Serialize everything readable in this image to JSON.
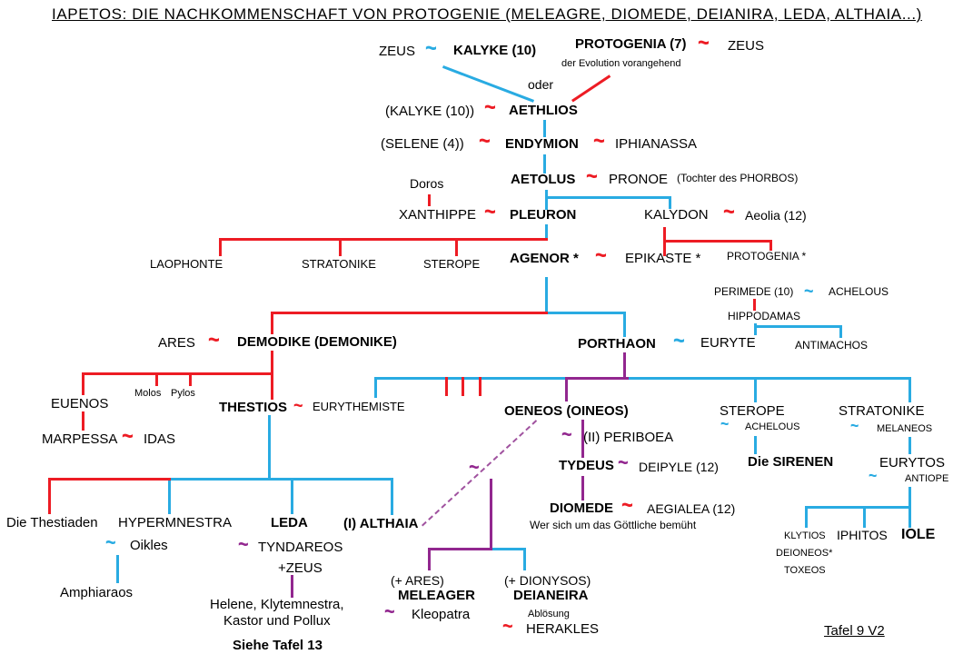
{
  "title": "IAPETOS: DIE NACHKOMMENSCHAFT VON PROTOGENIE (MELEAGRE, DIOMEDE, DEIANIRA, LEDA, ALTHAIA...)",
  "colors": {
    "b": "#29ABE2",
    "r": "#ED1C24",
    "p": "#92278F",
    "dp": "#A0529F"
  },
  "tilde_char": "~",
  "nodes": [
    [
      417,
      48,
      "ZEUS",
      "n"
    ],
    [
      499,
      47,
      "KALYKE (10)",
      "b"
    ],
    [
      633,
      40,
      "PROTOGENIA (7)",
      "b"
    ],
    [
      801,
      42,
      "ZEUS",
      "n"
    ],
    [
      618,
      64,
      "der Evolution vorangehend",
      "s11"
    ],
    [
      581,
      85,
      "oder",
      "n14"
    ],
    [
      424,
      114,
      "(KALYKE (10))",
      "n"
    ],
    [
      560,
      113,
      "AETHLIOS",
      "b"
    ],
    [
      419,
      150,
      "(SELENE (4))",
      "n"
    ],
    [
      556,
      150,
      "ENDYMION",
      "b"
    ],
    [
      677,
      150,
      "IPHIANASSA",
      "n"
    ],
    [
      562,
      189,
      "AETOLUS",
      "b"
    ],
    [
      670,
      189,
      "PRONOE",
      "n"
    ],
    [
      745,
      190,
      "(Tochter des PHORBOS)",
      "s12"
    ],
    [
      451,
      194,
      "Doros",
      "n14"
    ],
    [
      439,
      228,
      "XANTHIPPE",
      "n"
    ],
    [
      561,
      228,
      "PLEURON",
      "b"
    ],
    [
      709,
      228,
      "KALYDON",
      "n"
    ],
    [
      820,
      229,
      "Aeolia (12)",
      "n14"
    ],
    [
      165,
      284,
      "LAOPHONTE",
      "s13"
    ],
    [
      332,
      284,
      "STRATONIKE",
      "s13"
    ],
    [
      466,
      284,
      "STEROPE",
      "s13"
    ],
    [
      561,
      276,
      "AGENOR *",
      "b"
    ],
    [
      688,
      276,
      "EPIKASTE *",
      "n"
    ],
    [
      800,
      276,
      "PROTOGENIA *",
      "s12"
    ],
    [
      786,
      315,
      "PERIMEDE (10)",
      "s12"
    ],
    [
      912,
      315,
      "ACHELOUS",
      "s12"
    ],
    [
      801,
      342,
      "HIPPODAMAS",
      "s12"
    ],
    [
      875,
      374,
      "ANTIMACHOS",
      "s12"
    ],
    [
      636,
      370,
      "PORTHAON",
      "b"
    ],
    [
      771,
      369,
      "EURYTE",
      "n"
    ],
    [
      174,
      369,
      "ARES",
      "n"
    ],
    [
      261,
      368,
      "DEMODIKE (DEMONIKE)",
      "b"
    ],
    [
      56,
      436,
      "EUENOS",
      "n"
    ],
    [
      148,
      427,
      "Molos",
      "s11"
    ],
    [
      188,
      427,
      "Pylos",
      "s11"
    ],
    [
      241,
      440,
      "THESTIOS",
      "b"
    ],
    [
      344,
      441,
      "EURYTHEMISTE",
      "s13"
    ],
    [
      46,
      475,
      "MARPESSA",
      "n"
    ],
    [
      158,
      475,
      "IDAS",
      "n"
    ],
    [
      555,
      444,
      "OENEOS (OINEOS)",
      "b"
    ],
    [
      642,
      473,
      "(II) PERIBOEA",
      "n"
    ],
    [
      615,
      504,
      "TYDEUS",
      "b"
    ],
    [
      703,
      506,
      "DEIPYLE (12)",
      "n14"
    ],
    [
      605,
      551,
      "DIOMEDE",
      "b"
    ],
    [
      712,
      552,
      "AEGIALEA (12)",
      "n14"
    ],
    [
      583,
      572,
      "Wer sich um das Göttliche bemüht",
      "s12"
    ],
    [
      792,
      444,
      "STEROPE",
      "n"
    ],
    [
      820,
      464,
      "ACHELOUS",
      "s11"
    ],
    [
      823,
      500,
      "Die SIRENEN",
      "b"
    ],
    [
      923,
      444,
      "STRATONIKE",
      "n"
    ],
    [
      965,
      466,
      "MELANEOS",
      "s11"
    ],
    [
      968,
      501,
      "EURYTOS",
      "n"
    ],
    [
      996,
      521,
      "ANTIOPE",
      "s11"
    ],
    [
      863,
      584,
      "KLYTIOS",
      "s11"
    ],
    [
      921,
      581,
      "IPHITOS",
      "n14"
    ],
    [
      992,
      580,
      "IOLE",
      "b16"
    ],
    [
      854,
      603,
      "DEIONEOS*",
      "s11"
    ],
    [
      863,
      622,
      "TOXEOS",
      "s11"
    ],
    [
      7,
      567,
      "Die Thestiaden",
      "n"
    ],
    [
      130,
      567,
      "HYPERMNESTRA",
      "n"
    ],
    [
      298,
      567,
      "LEDA",
      "b"
    ],
    [
      378,
      568,
      "(I) ALTHAIA",
      "b"
    ],
    [
      143,
      592,
      "Oikles",
      "n"
    ],
    [
      66,
      644,
      "Amphiaraos",
      "n"
    ],
    [
      284,
      594,
      "TYNDAREOS",
      "n"
    ],
    [
      306,
      617,
      "+ZEUS",
      "n"
    ],
    [
      231,
      657,
      "Helene, Klytemnestra,",
      "n"
    ],
    [
      246,
      675,
      "Kastor und Pollux",
      "n"
    ],
    [
      256,
      702,
      "Siehe Tafel 13",
      "b"
    ],
    [
      430,
      631,
      "(+ ARES)",
      "n14"
    ],
    [
      438,
      647,
      "MELEAGER",
      "b"
    ],
    [
      453,
      668,
      "Kleopatra",
      "n"
    ],
    [
      555,
      631,
      "(+ DIONYSOS)",
      "n14"
    ],
    [
      565,
      647,
      "DEIANEIRA",
      "b"
    ],
    [
      581,
      670,
      "Ablösung",
      "s11"
    ],
    [
      579,
      684,
      "HERAKLES",
      "n"
    ],
    [
      907,
      686,
      "Tafel 9 V2",
      "u15"
    ]
  ],
  "tildes": [
    [
      468,
      42,
      22,
      "b"
    ],
    [
      768,
      36,
      22,
      "r"
    ],
    [
      533,
      107,
      22,
      "r"
    ],
    [
      527,
      144,
      22,
      "r"
    ],
    [
      653,
      144,
      22,
      "r"
    ],
    [
      645,
      183,
      22,
      "r"
    ],
    [
      533,
      222,
      22,
      "r"
    ],
    [
      796,
      222,
      22,
      "r"
    ],
    [
      655,
      270,
      22,
      "r"
    ],
    [
      885,
      311,
      18,
      "b"
    ],
    [
      741,
      364,
      22,
      "b"
    ],
    [
      229,
      363,
      22,
      "r"
    ],
    [
      323,
      437,
      18,
      "r"
    ],
    [
      134,
      469,
      22,
      "r"
    ],
    [
      618,
      469,
      20,
      "p"
    ],
    [
      680,
      500,
      20,
      "p"
    ],
    [
      684,
      545,
      22,
      "r"
    ],
    [
      793,
      460,
      16,
      "b"
    ],
    [
      936,
      462,
      16,
      "b"
    ],
    [
      956,
      517,
      16,
      "b"
    ],
    [
      116,
      588,
      20,
      "b"
    ],
    [
      262,
      590,
      20,
      "p"
    ],
    [
      516,
      505,
      20,
      "p"
    ],
    [
      423,
      664,
      20,
      "p"
    ],
    [
      553,
      680,
      20,
      "r"
    ]
  ],
  "lines": [
    [
      598,
      132,
      3,
      19,
      "b"
    ],
    [
      598,
      170,
      3,
      21,
      "b"
    ],
    [
      600,
      209,
      3,
      22,
      "b"
    ],
    [
      600,
      216,
      139,
      3,
      "b"
    ],
    [
      736,
      216,
      3,
      14,
      "b"
    ],
    [
      600,
      247,
      3,
      18,
      "b"
    ],
    [
      600,
      305,
      3,
      41,
      "b"
    ],
    [
      600,
      343,
      89,
      3,
      "b"
    ],
    [
      686,
      343,
      3,
      28,
      "b"
    ],
    [
      830,
      356,
      3,
      13,
      "b"
    ],
    [
      830,
      358,
      97,
      3,
      "b"
    ],
    [
      924,
      358,
      3,
      14,
      "b"
    ],
    [
      412,
      415,
      591,
      3,
      "b"
    ],
    [
      412,
      415,
      3,
      23,
      "b"
    ],
    [
      830,
      415,
      3,
      28,
      "b"
    ],
    [
      1000,
      415,
      3,
      28,
      "b"
    ],
    [
      830,
      480,
      3,
      20,
      "b"
    ],
    [
      1000,
      481,
      3,
      19,
      "b"
    ],
    [
      1000,
      536,
      3,
      24,
      "b"
    ],
    [
      886,
      557,
      117,
      3,
      "b"
    ],
    [
      886,
      557,
      3,
      24,
      "b"
    ],
    [
      950,
      557,
      3,
      24,
      "b"
    ],
    [
      1000,
      557,
      3,
      24,
      "b"
    ],
    [
      185,
      526,
      248,
      3,
      "b"
    ],
    [
      185,
      526,
      3,
      40,
      "b"
    ],
    [
      320,
      526,
      3,
      40,
      "b"
    ],
    [
      430,
      526,
      3,
      41,
      "b"
    ],
    [
      295,
      457,
      3,
      71,
      "b"
    ],
    [
      128,
      611,
      3,
      31,
      "b"
    ],
    [
      576,
      603,
      3,
      25,
      "b"
    ],
    [
      541,
      603,
      38,
      3,
      "b"
    ],
    [
      471,
      214,
      3,
      13,
      "r"
    ],
    [
      730,
      250,
      3,
      32,
      "r"
    ],
    [
      730,
      264,
      120,
      3,
      "r"
    ],
    [
      847,
      264,
      3,
      12,
      "r"
    ],
    [
      241,
      262,
      362,
      3,
      "r"
    ],
    [
      241,
      262,
      3,
      20,
      "r"
    ],
    [
      373,
      262,
      3,
      20,
      "r"
    ],
    [
      501,
      262,
      3,
      20,
      "r"
    ],
    [
      298,
      343,
      305,
      3,
      "r"
    ],
    [
      298,
      343,
      3,
      25,
      "r"
    ],
    [
      829,
      329,
      3,
      13,
      "r"
    ],
    [
      298,
      386,
      3,
      54,
      "r"
    ],
    [
      90,
      410,
      210,
      3,
      "r"
    ],
    [
      90,
      410,
      3,
      25,
      "r"
    ],
    [
      171,
      410,
      3,
      15,
      "r"
    ],
    [
      208,
      410,
      3,
      15,
      "r"
    ],
    [
      90,
      453,
      3,
      21,
      "r"
    ],
    [
      53,
      526,
      135,
      3,
      "r"
    ],
    [
      53,
      526,
      3,
      40,
      "r"
    ],
    [
      490,
      415,
      3,
      21,
      "r"
    ],
    [
      508,
      415,
      3,
      21,
      "r"
    ],
    [
      527,
      415,
      3,
      21,
      "r"
    ],
    [
      686,
      388,
      3,
      30,
      "p"
    ],
    [
      622,
      415,
      70,
      3,
      "p"
    ],
    [
      622,
      415,
      3,
      27,
      "p"
    ],
    [
      640,
      462,
      3,
      42,
      "p"
    ],
    [
      640,
      524,
      3,
      27,
      "p"
    ],
    [
      539,
      527,
      3,
      79,
      "p"
    ],
    [
      471,
      603,
      71,
      3,
      "p"
    ],
    [
      471,
      603,
      3,
      25,
      "p"
    ],
    [
      320,
      633,
      3,
      25,
      "p"
    ]
  ],
  "diagonals": [
    [
      488,
      72,
      588,
      110,
      "b",
      false
    ],
    [
      629,
      110,
      671,
      82,
      "r",
      false
    ],
    [
      464,
      578,
      590,
      462,
      "dp",
      true
    ]
  ]
}
